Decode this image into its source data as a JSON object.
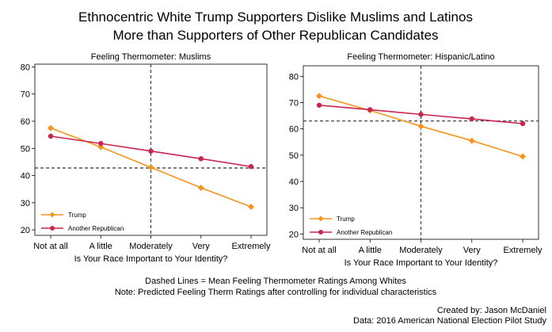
{
  "figure": {
    "title_line1": "Ethnocentric White Trump Supporters Dislike Muslims and Latinos",
    "title_line2": "More than Supporters of Other Republican Candidates",
    "note_line1": "Dashed Lines = Mean Feeling Thermometer Ratings Among Whites",
    "note_line2": "Note: Predicted Feeling Therm Ratings after controlling for individual characteristics",
    "credit_line1": "Created by: Jason McDaniel",
    "credit_line2": "Data: 2016 American National Election Pilot Study"
  },
  "colors": {
    "trump": "#f7941d",
    "republican": "#c8254f",
    "reference": "#333333",
    "frame": "#000000"
  },
  "chart_data": [
    {
      "type": "line",
      "title": "Feeling Thermometer: Muslims",
      "xlabel": "Is Your Race Important to Your Identity?",
      "ylabel": "",
      "categories": [
        "Not at all",
        "A little",
        "Moderately",
        "Very",
        "Extremely"
      ],
      "ylim": [
        18,
        81
      ],
      "yticks": [
        20,
        30,
        40,
        50,
        60,
        70,
        80
      ],
      "series": [
        {
          "name": "Trump",
          "color": "#f7941d",
          "marker": "diamond",
          "values": [
            57.5,
            50.5,
            43.0,
            35.5,
            28.5
          ]
        },
        {
          "name": "Another Republican",
          "color": "#c8254f",
          "marker": "circle",
          "values": [
            54.5,
            51.8,
            49.0,
            46.2,
            43.3
          ]
        }
      ],
      "reference_lines": {
        "horizontal": 42.8,
        "vertical_category": "Moderately"
      },
      "grid": false,
      "legend": "bottom-left"
    },
    {
      "type": "line",
      "title": "Feeling Thermometer: Hispanic/Latino",
      "xlabel": "Is Your Race Important to Your Identity?",
      "ylabel": "",
      "categories": [
        "Not at all",
        "A little",
        "Moderately",
        "Very",
        "Extremely"
      ],
      "ylim": [
        18,
        84
      ],
      "yticks": [
        20,
        30,
        40,
        50,
        60,
        70,
        80
      ],
      "series": [
        {
          "name": "Trump",
          "color": "#f7941d",
          "marker": "diamond",
          "values": [
            72.5,
            67.0,
            61.0,
            55.5,
            49.5
          ]
        },
        {
          "name": "Another Republican",
          "color": "#c8254f",
          "marker": "circle",
          "values": [
            69.0,
            67.3,
            65.5,
            63.8,
            62.0
          ]
        }
      ],
      "reference_lines": {
        "horizontal": 63.0,
        "vertical_category": "Moderately"
      },
      "grid": false,
      "legend": "bottom-left"
    }
  ]
}
